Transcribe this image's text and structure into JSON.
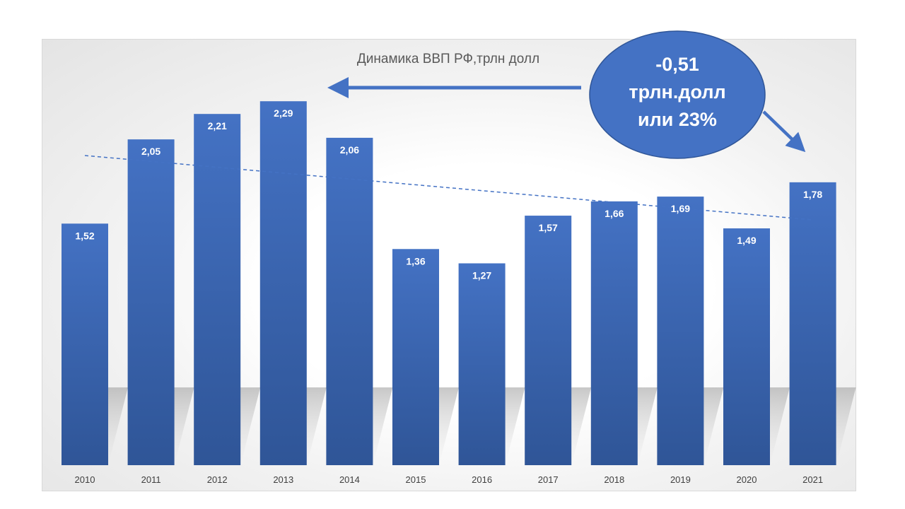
{
  "chart_data": {
    "type": "bar",
    "title": "Динамика ВВП РФ,трлн долл",
    "categories": [
      "2010",
      "2011",
      "2012",
      "2013",
      "2014",
      "2015",
      "2016",
      "2017",
      "2018",
      "2019",
      "2020",
      "2021"
    ],
    "values": [
      1.52,
      2.05,
      2.21,
      2.29,
      2.06,
      1.36,
      1.27,
      1.57,
      1.66,
      1.69,
      1.49,
      1.78
    ],
    "data_labels": [
      "1,52",
      "2,05",
      "2,21",
      "2,29",
      "2,06",
      "1,36",
      "1,27",
      "1,57",
      "1,66",
      "1,69",
      "1,49",
      "1,78"
    ],
    "ylim": [
      0,
      2.5
    ],
    "grid": false,
    "legend": "none",
    "trendline": {
      "type": "linear",
      "style": "dashed"
    },
    "bar_color_top": "#4472c4",
    "bar_color_bottom": "#2f5597"
  },
  "callout": {
    "lines": [
      "-0,51",
      "трлн.долл",
      "или 23%"
    ],
    "fill_color": "#4472c4"
  }
}
